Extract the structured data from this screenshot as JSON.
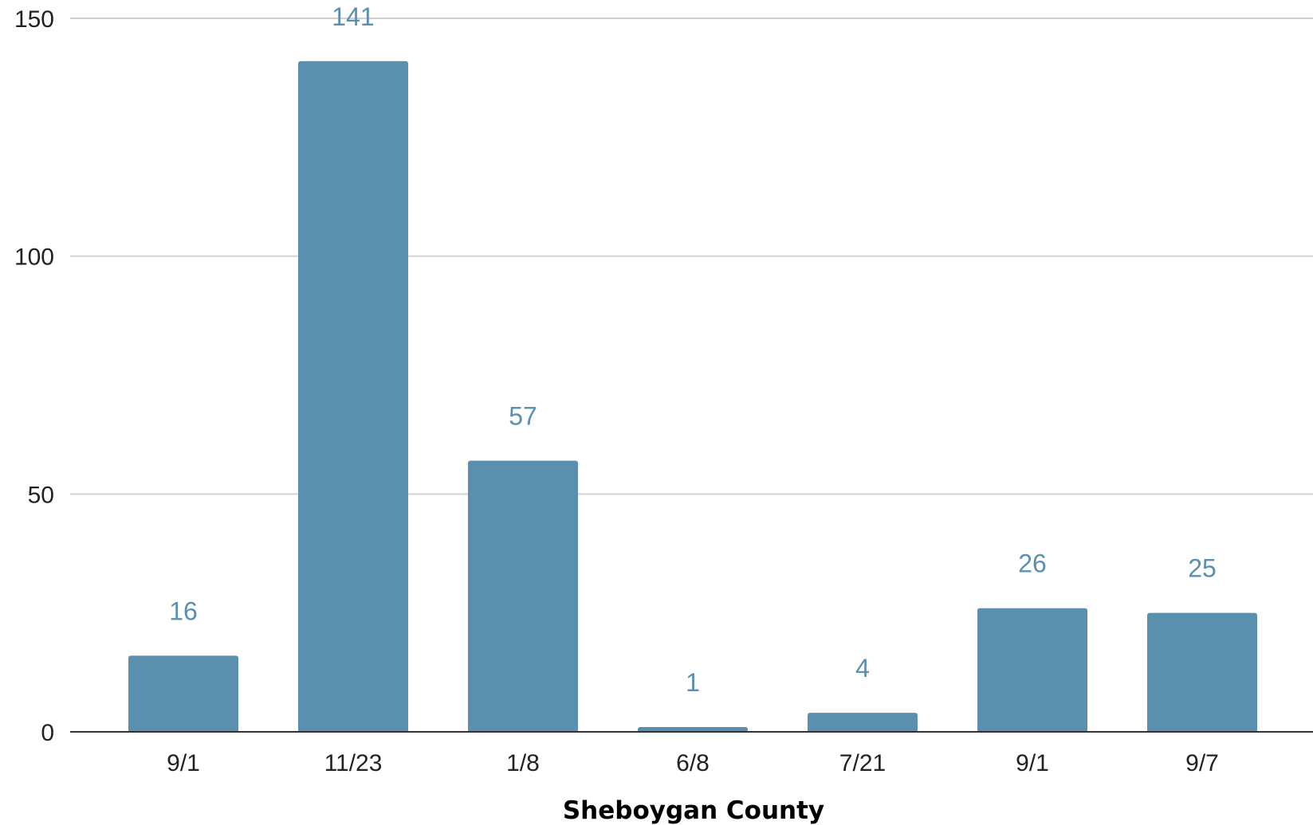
{
  "chart_data": {
    "type": "bar",
    "title": "",
    "xlabel": "Sheboygan County",
    "ylabel": "",
    "categories": [
      "9/1",
      "11/23",
      "1/8",
      "6/8",
      "7/21",
      "9/1",
      "9/7"
    ],
    "values": [
      16,
      141,
      57,
      1,
      4,
      26,
      25
    ],
    "data_labels": [
      "16",
      "141",
      "57",
      "1",
      "4",
      "26",
      "25"
    ],
    "ylim": [
      0,
      150
    ],
    "yticks": [
      0,
      50,
      100,
      150
    ],
    "ytick_labels": [
      "0",
      "50",
      "100",
      "150"
    ],
    "grid": true,
    "legend": "none",
    "colors": {
      "bar": "#5a8fae",
      "data_label": "#5a8fae",
      "grid": "#d0d0d0",
      "axis": "#333333"
    }
  }
}
